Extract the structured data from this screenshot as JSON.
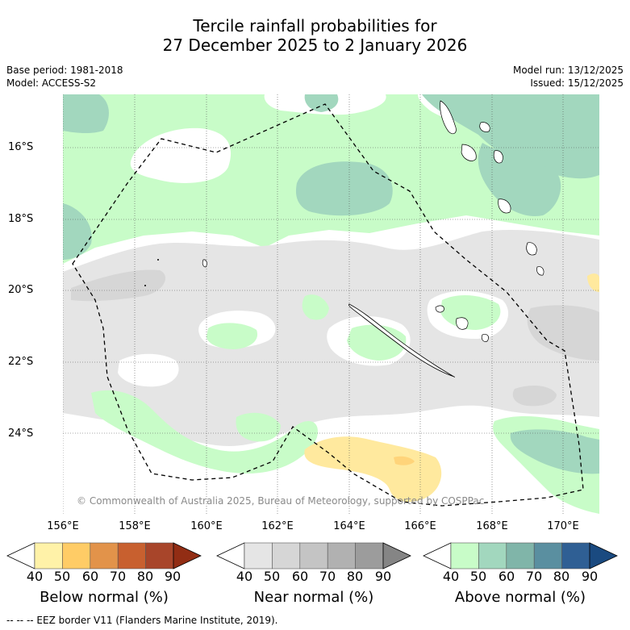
{
  "title": {
    "line1": "Tercile rainfall probabilities for",
    "line2": "27 December 2025 to 2 January 2026"
  },
  "meta": {
    "base_period": "Base period: 1981-2018",
    "model": "Model: ACCESS-S2",
    "model_run": "Model run: 13/12/2025",
    "issued": "Issued: 15/12/2025"
  },
  "axes": {
    "latitudes": [
      "16°S",
      "18°S",
      "20°S",
      "22°S",
      "24°S"
    ],
    "longitudes": [
      "156°E",
      "158°E",
      "160°E",
      "162°E",
      "164°E",
      "166°E",
      "168°E",
      "170°E"
    ]
  },
  "copyright": "© Commonwealth of Australia 2025, Bureau of Meteorology, supported by COSPPac",
  "colorbars": [
    {
      "title": "Below normal (%)",
      "ticks": [
        "40",
        "50",
        "60",
        "70",
        "80",
        "90"
      ],
      "colors": [
        "#ffffff",
        "#fff2a8",
        "#ffcc66",
        "#e2934a",
        "#c8602f",
        "#a8452a",
        "#922d14"
      ]
    },
    {
      "title": "Near normal (%)",
      "ticks": [
        "40",
        "50",
        "60",
        "70",
        "80",
        "90"
      ],
      "colors": [
        "#ffffff",
        "#e5e5e5",
        "#d6d6d6",
        "#c4c4c4",
        "#b1b1b1",
        "#9c9c9c",
        "#858585"
      ]
    },
    {
      "title": "Above normal (%)",
      "ticks": [
        "40",
        "50",
        "60",
        "70",
        "80",
        "90"
      ],
      "colors": [
        "#ffffff",
        "#c8fcc8",
        "#a2d7be",
        "#80b5a9",
        "#5a8fa0",
        "#2f5f94",
        "#1a4a80"
      ]
    }
  ],
  "legend_footer": "-- -- -- EEZ border V11 (Flanders Marine Institute, 2019).",
  "map_colors": {
    "above_50": "#c8fcc8",
    "above_60": "#a2d7be",
    "near_50": "#e5e5e5",
    "near_60": "#d6d6d6",
    "below_50": "#ffe99e",
    "below_60": "#ffd47a"
  }
}
